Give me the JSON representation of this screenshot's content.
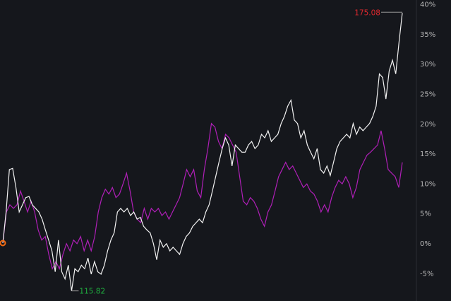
{
  "chart_data": {
    "type": "line",
    "ylim": [
      -8,
      40
    ],
    "yticks": [
      "40%",
      "35%",
      "30%",
      "25%",
      "20%",
      "15%",
      "10%",
      "5%",
      "0%",
      "-5%"
    ],
    "ytick_values": [
      40,
      35,
      30,
      25,
      20,
      15,
      10,
      5,
      0,
      -5
    ],
    "grid": false,
    "series": [
      {
        "color": "#f2f2f2",
        "values": [
          0,
          5.2,
          12.3,
          12.5,
          9.3,
          5.2,
          6.4,
          7.6,
          7.8,
          6.4,
          5.8,
          5.2,
          4.0,
          2.2,
          0.5,
          -1.3,
          -4.8,
          0.5,
          -4.8,
          -6.0,
          -3.7,
          -8.0,
          -4.3,
          -4.8,
          -3.7,
          -4.3,
          -2.5,
          -5.2,
          -3.1,
          -4.8,
          -5.2,
          -3.7,
          -1.3,
          0.5,
          1.7,
          5.2,
          5.8,
          5.2,
          5.8,
          4.6,
          5.2,
          4.0,
          4.3,
          2.8,
          2.2,
          1.7,
          -0.1,
          -2.8,
          0.5,
          -0.7,
          -0.1,
          -1.3,
          -0.7,
          -1.3,
          -1.9,
          -0.1,
          1.1,
          1.7,
          2.8,
          3.4,
          4.0,
          3.4,
          5.2,
          6.4,
          8.7,
          11.1,
          13.5,
          15.8,
          17.6,
          16.4,
          12.9,
          16.4,
          15.8,
          15.2,
          15.2,
          16.4,
          17.0,
          15.8,
          16.4,
          18.2,
          17.6,
          18.8,
          17.0,
          17.6,
          18.2,
          20.0,
          21.2,
          22.9,
          23.9,
          20.6,
          20.0,
          17.6,
          18.8,
          16.4,
          15.2,
          14.1,
          15.8,
          12.3,
          11.7,
          12.9,
          11.3,
          13.5,
          15.8,
          17.0,
          17.6,
          18.2,
          17.6,
          20.0,
          18.2,
          19.4,
          18.8,
          19.4,
          20.0,
          21.2,
          22.9,
          28.3,
          27.7,
          24.1,
          28.8,
          30.6,
          28.3,
          33.6,
          38.5
        ]
      },
      {
        "color": "#b01fb8",
        "values": [
          0,
          5.2,
          6.4,
          5.8,
          6.4,
          8.7,
          7.0,
          5.2,
          7.0,
          5.2,
          2.2,
          0.5,
          1.1,
          -1.9,
          -4.3,
          -3.1,
          -4.3,
          -1.9,
          -0.1,
          -1.3,
          0.5,
          -0.1,
          1.1,
          -1.3,
          0.5,
          -1.3,
          1.1,
          5.2,
          7.6,
          9.0,
          8.2,
          9.3,
          7.6,
          8.2,
          9.9,
          11.7,
          8.7,
          5.2,
          4.0,
          3.4,
          5.8,
          4.0,
          5.8,
          5.2,
          5.8,
          4.6,
          5.2,
          4.0,
          5.2,
          6.4,
          7.6,
          9.9,
          12.3,
          11.1,
          12.3,
          8.7,
          7.6,
          12.3,
          15.8,
          20.0,
          19.4,
          17.0,
          15.8,
          18.2,
          17.6,
          16.4,
          15.2,
          11.1,
          7.0,
          6.4,
          7.6,
          7.0,
          5.8,
          4.0,
          2.8,
          5.2,
          6.4,
          8.7,
          11.1,
          12.3,
          13.5,
          12.3,
          12.9,
          11.7,
          10.5,
          9.3,
          9.9,
          8.7,
          8.2,
          7.0,
          5.2,
          6.4,
          5.2,
          7.6,
          9.3,
          10.5,
          9.9,
          11.1,
          9.9,
          7.6,
          9.3,
          12.3,
          13.5,
          14.7,
          15.2,
          15.8,
          16.4,
          18.8,
          15.8,
          12.3,
          11.7,
          11.1,
          9.3,
          13.5
        ]
      }
    ],
    "annotations": {
      "high": {
        "text": "175.08",
        "color": "#e0282e"
      },
      "low": {
        "text": "115.82",
        "color": "#1fae3f"
      }
    },
    "start_marker_color": "#f26a10"
  }
}
